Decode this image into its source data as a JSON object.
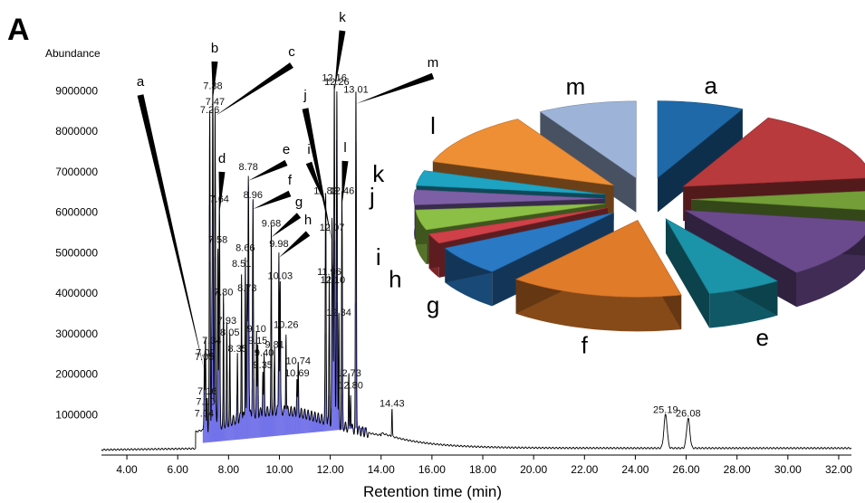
{
  "panel_label": "A",
  "chart_data": [
    {
      "type": "line",
      "title": "",
      "ylabel": "Abundance",
      "xlabel": "Retention time (min)",
      "xlim": [
        3.0,
        32.5
      ],
      "ylim": [
        0,
        9900000
      ],
      "x_ticks": [
        "4.00",
        "6.00",
        "8.00",
        "10.00",
        "12.00",
        "14.00",
        "16.00",
        "18.00",
        "20.00",
        "22.00",
        "24.00",
        "26.00",
        "28.00",
        "30.00",
        "32.00"
      ],
      "y_ticks": [
        "1000000",
        "2000000",
        "3000000",
        "4000000",
        "5000000",
        "6000000",
        "7000000",
        "8000000",
        "9000000"
      ],
      "peaks": [
        {
          "rt": 7.04,
          "y": 900000,
          "label": "7.04"
        },
        {
          "rt": 7.1,
          "y": 1200000,
          "label": "7.10"
        },
        {
          "rt": 7.16,
          "y": 1450000,
          "label": "7.16"
        },
        {
          "rt": 7.05,
          "y": 2300000,
          "label": "7.05"
        },
        {
          "rt": 7.09,
          "y": 2400000,
          "label": "7.09"
        },
        {
          "rt": 7.26,
          "y": 8400000,
          "label": "7.26"
        },
        {
          "rt": 7.47,
          "y": 8600000,
          "label": "7.47"
        },
        {
          "rt": 7.38,
          "y": 9000000,
          "label": "7.38"
        },
        {
          "rt": 7.34,
          "y": 2700000,
          "label": "7.34"
        },
        {
          "rt": 7.58,
          "y": 5200000,
          "label": "7.58"
        },
        {
          "rt": 7.64,
          "y": 6200000,
          "label": "7.64"
        },
        {
          "rt": 7.8,
          "y": 3900000,
          "label": "7.80"
        },
        {
          "rt": 7.93,
          "y": 3200000,
          "label": "7.93"
        },
        {
          "rt": 8.05,
          "y": 2900000,
          "label": "8.05"
        },
        {
          "rt": 8.35,
          "y": 2500000,
          "label": "8.35"
        },
        {
          "rt": 8.51,
          "y": 4600000,
          "label": "8.51"
        },
        {
          "rt": 8.66,
          "y": 5000000,
          "label": "8.66"
        },
        {
          "rt": 8.73,
          "y": 4000000,
          "label": "8.73"
        },
        {
          "rt": 8.78,
          "y": 7000000,
          "label": "8.78"
        },
        {
          "rt": 8.96,
          "y": 6300000,
          "label": "8.96"
        },
        {
          "rt": 9.1,
          "y": 3000000,
          "label": "9.10"
        },
        {
          "rt": 9.15,
          "y": 2700000,
          "label": "9.15"
        },
        {
          "rt": 9.35,
          "y": 2100000,
          "label": "9.35"
        },
        {
          "rt": 9.4,
          "y": 2400000,
          "label": "9.40"
        },
        {
          "rt": 9.68,
          "y": 5600000,
          "label": "9.68"
        },
        {
          "rt": 9.81,
          "y": 2600000,
          "label": "9.81"
        },
        {
          "rt": 9.98,
          "y": 5100000,
          "label": "9.98"
        },
        {
          "rt": 10.03,
          "y": 4300000,
          "label": "10.03"
        },
        {
          "rt": 10.26,
          "y": 3100000,
          "label": "10.26"
        },
        {
          "rt": 10.69,
          "y": 1900000,
          "label": "10.69"
        },
        {
          "rt": 10.74,
          "y": 2200000,
          "label": "10.74"
        },
        {
          "rt": 11.82,
          "y": 6400000,
          "label": "11.82"
        },
        {
          "rt": 11.96,
          "y": 4400000,
          "label": "11.96"
        },
        {
          "rt": 12.07,
          "y": 5500000,
          "label": "12.07"
        },
        {
          "rt": 12.1,
          "y": 4200000,
          "label": "12.10"
        },
        {
          "rt": 12.16,
          "y": 9200000,
          "label": "12.16"
        },
        {
          "rt": 12.26,
          "y": 9100000,
          "label": "12.26"
        },
        {
          "rt": 12.34,
          "y": 3400000,
          "label": "12.34"
        },
        {
          "rt": 12.46,
          "y": 6400000,
          "label": "12.46"
        },
        {
          "rt": 12.73,
          "y": 1900000,
          "label": "12.73"
        },
        {
          "rt": 12.8,
          "y": 1600000,
          "label": "12.80"
        },
        {
          "rt": 13.01,
          "y": 8900000,
          "label": "13.01"
        },
        {
          "rt": 14.43,
          "y": 1150000,
          "label": "14.43"
        },
        {
          "rt": 25.19,
          "y": 1000000,
          "label": "25.19"
        },
        {
          "rt": 26.08,
          "y": 900000,
          "label": "26.08"
        }
      ],
      "peak_callouts": [
        {
          "letter": "a",
          "rt": 7.05
        },
        {
          "letter": "b",
          "rt": 7.38
        },
        {
          "letter": "c",
          "rt": 7.47
        },
        {
          "letter": "d",
          "rt": 7.64
        },
        {
          "letter": "e",
          "rt": 8.78
        },
        {
          "letter": "f",
          "rt": 8.96
        },
        {
          "letter": "g",
          "rt": 9.68
        },
        {
          "letter": "h",
          "rt": 9.98
        },
        {
          "letter": "i",
          "rt": 11.82
        },
        {
          "letter": "j",
          "rt": 12.07
        },
        {
          "letter": "k",
          "rt": 12.16
        },
        {
          "letter": "l",
          "rt": 12.46
        },
        {
          "letter": "m",
          "rt": 13.01
        }
      ],
      "colors": {
        "trace": "#000000",
        "integration": "#1a1adc"
      }
    },
    {
      "type": "pie",
      "title": "",
      "categories": [
        "a",
        "b",
        "c",
        "d",
        "e",
        "f",
        "g",
        "h",
        "i",
        "j",
        "k",
        "l",
        "m"
      ],
      "values": [
        7,
        15,
        4,
        12,
        6,
        14,
        6,
        2,
        4,
        3,
        3,
        11,
        8
      ],
      "exploded": true,
      "style": "3d",
      "colors": [
        "#1f69a8",
        "#b83a3d",
        "#739e38",
        "#6a4a8c",
        "#1b93a8",
        "#e07b2a",
        "#2a79c4",
        "#cf4048",
        "#8cbf45",
        "#7d5fa6",
        "#1ea3c2",
        "#ee8f36",
        "#9db4d8"
      ]
    }
  ]
}
